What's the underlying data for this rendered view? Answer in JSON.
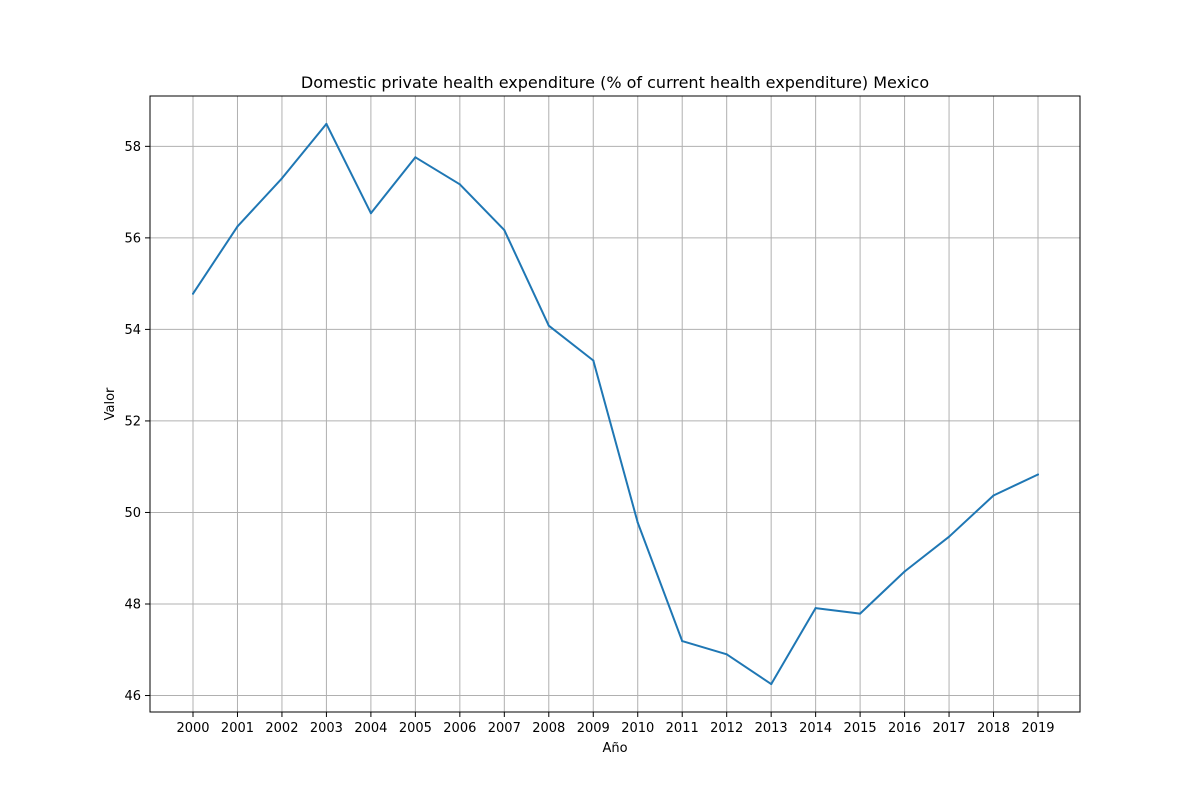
{
  "chart_data": {
    "type": "line",
    "title": "Domestic private health expenditure (% of current health expenditure) Mexico",
    "xlabel": "Año",
    "ylabel": "Valor",
    "x": [
      "2000",
      "2001",
      "2002",
      "2003",
      "2004",
      "2005",
      "2006",
      "2007",
      "2008",
      "2009",
      "2010",
      "2011",
      "2012",
      "2013",
      "2014",
      "2015",
      "2016",
      "2017",
      "2018",
      "2019"
    ],
    "series": [
      {
        "values": [
          54.78,
          56.25,
          57.3,
          58.49,
          56.54,
          57.76,
          57.17,
          56.17,
          54.08,
          53.32,
          49.78,
          47.19,
          46.9,
          46.25,
          47.91,
          47.79,
          48.71,
          49.47,
          50.37,
          50.83
        ],
        "color": "#1f77b4"
      }
    ],
    "ylim": [
      45.64,
      59.1
    ],
    "yticks": [
      "46",
      "48",
      "50",
      "52",
      "54",
      "56",
      "58"
    ],
    "grid": true,
    "legend": "none"
  }
}
